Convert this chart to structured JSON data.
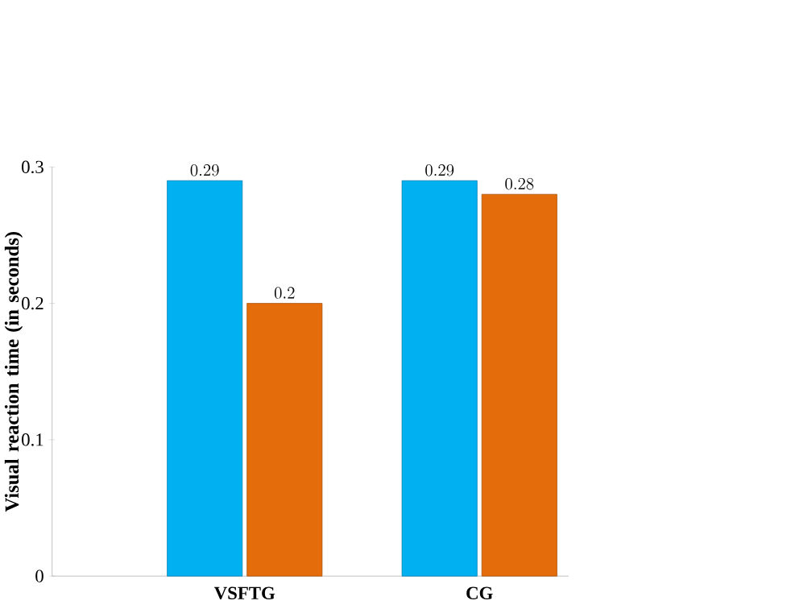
{
  "chart_data": {
    "type": "bar",
    "ylabel": "Visual reaction time (in seconds)",
    "categories": [
      "VSFTG",
      "CG"
    ],
    "series": [
      {
        "color": "#00b0f0",
        "values": [
          0.29,
          0.29
        ]
      },
      {
        "color": "#e46c0a",
        "values": [
          0.2,
          0.28
        ]
      }
    ],
    "ylim": [
      0,
      0.3
    ],
    "yticks": [
      0,
      0.1,
      0.2,
      0.3
    ],
    "data_labels": true,
    "grid": false,
    "legend": false
  }
}
